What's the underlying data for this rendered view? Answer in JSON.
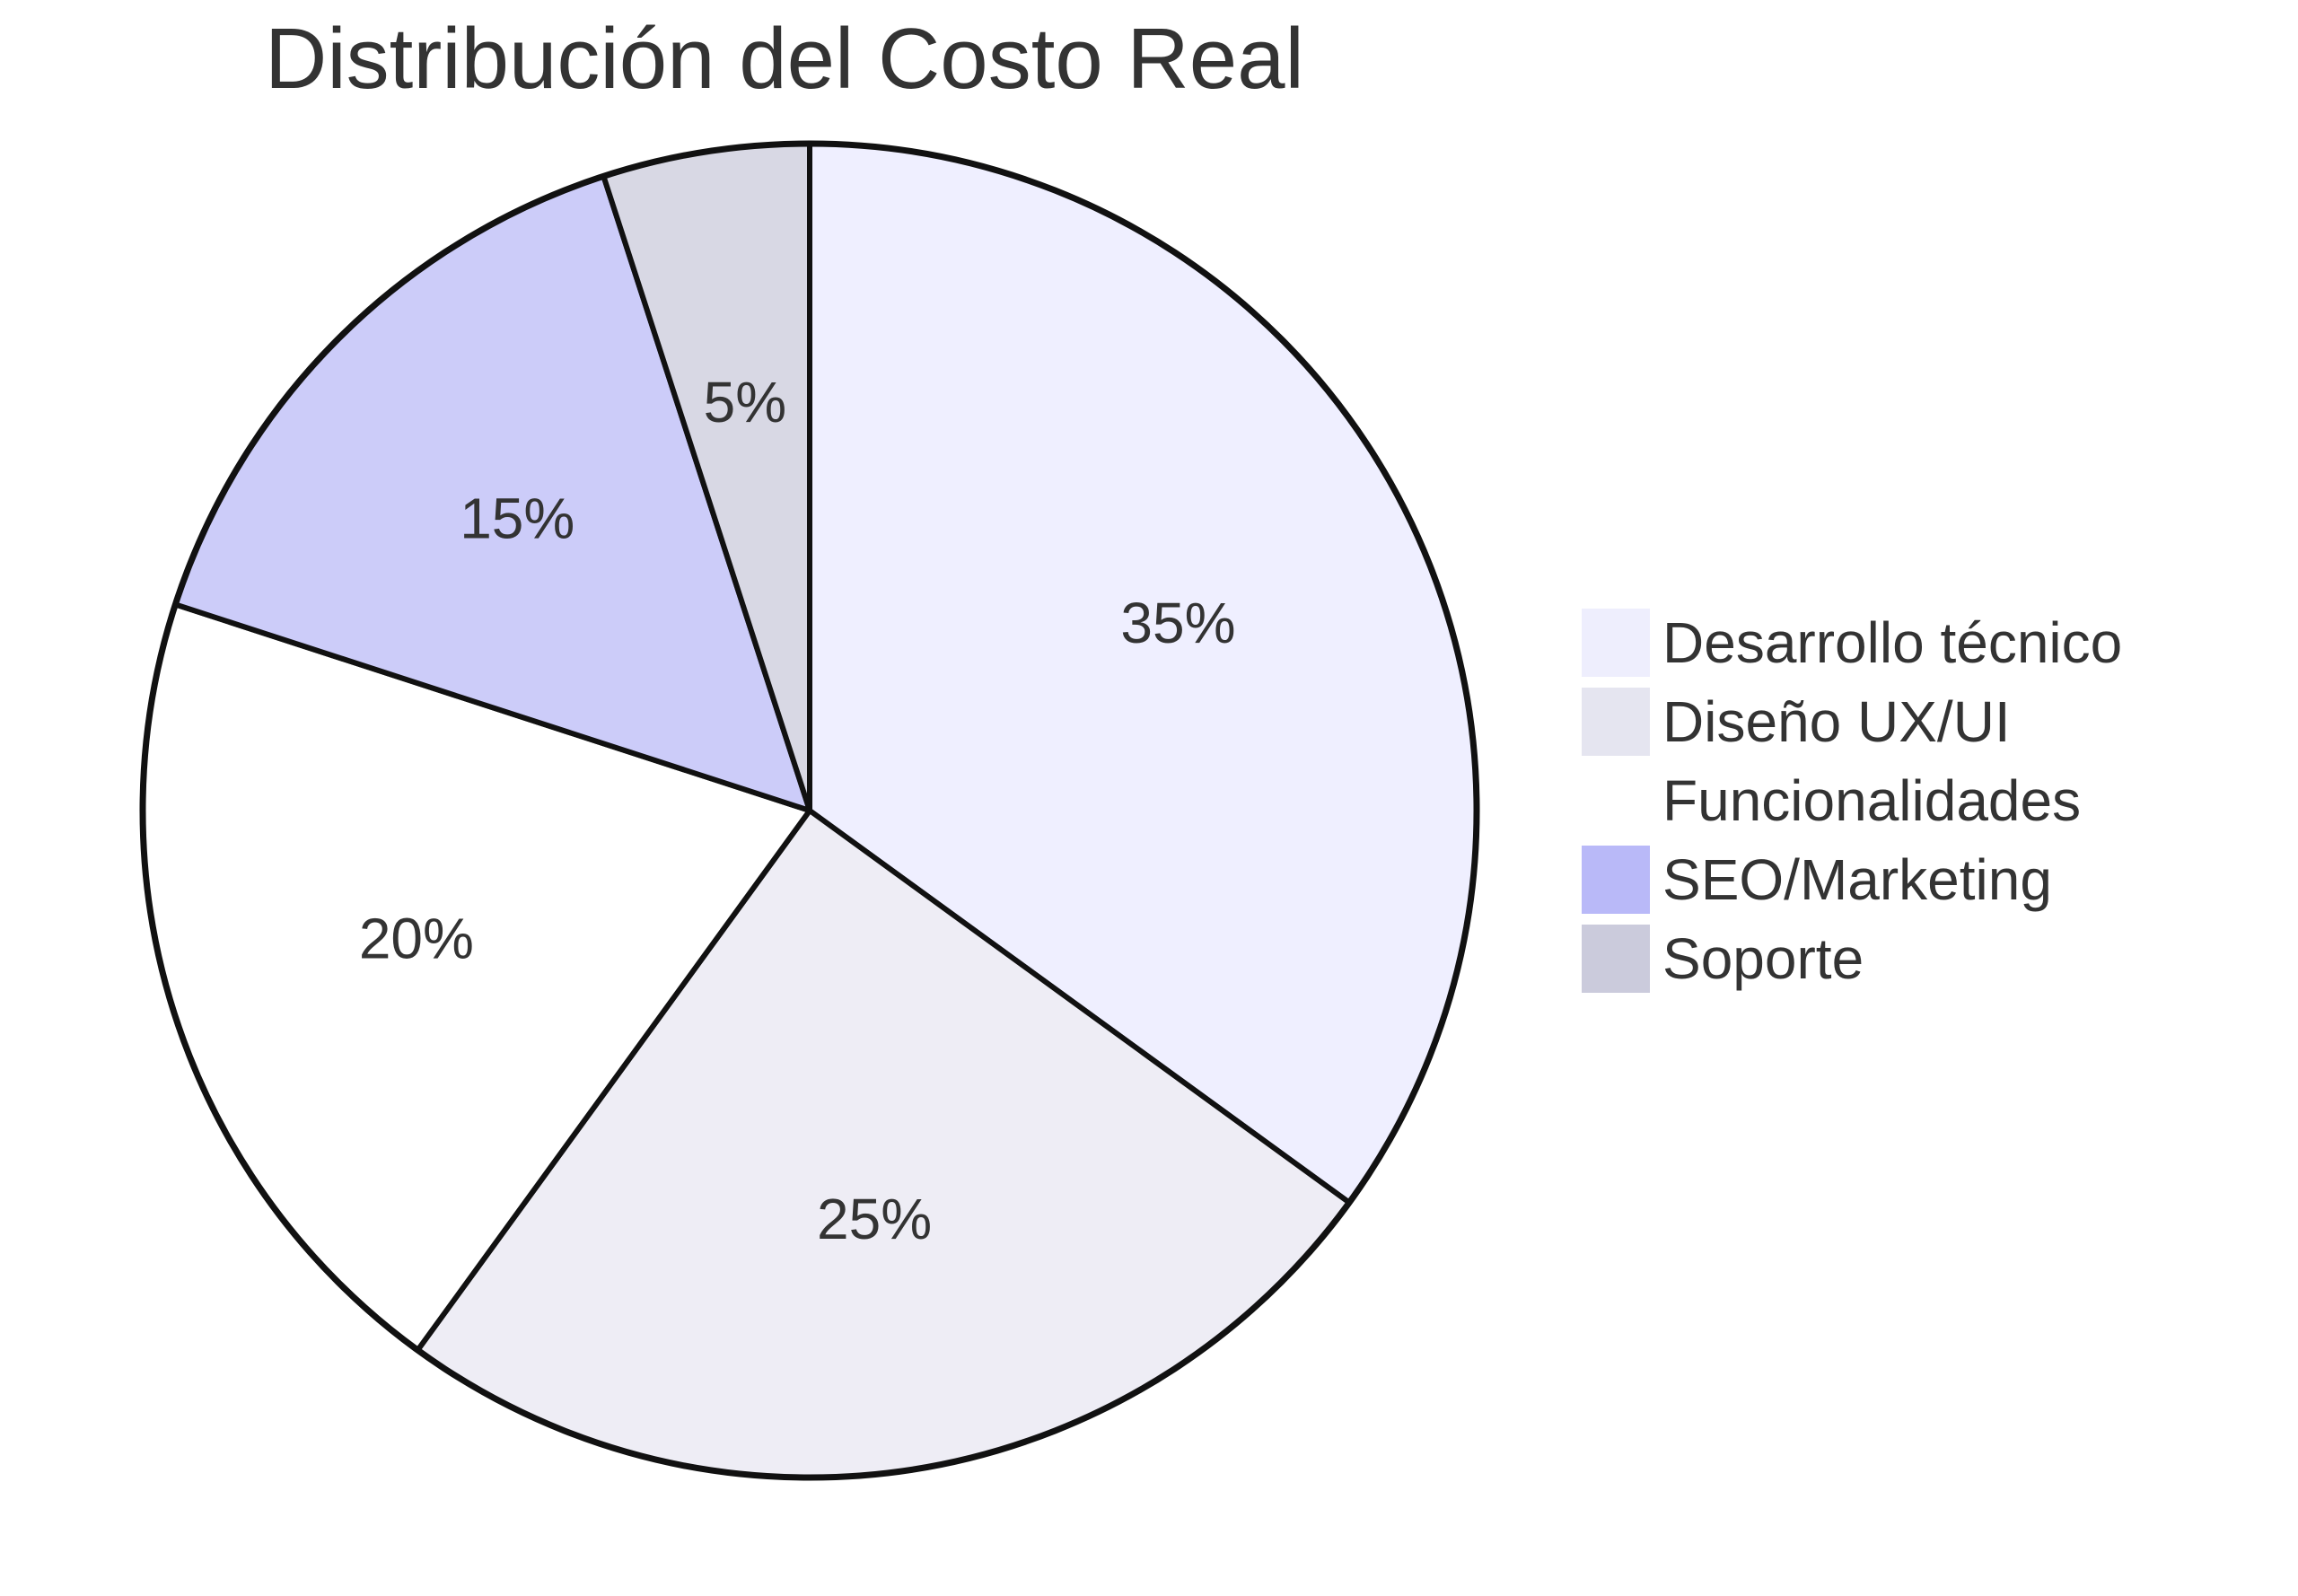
{
  "chart_data": {
    "type": "pie",
    "title": "Distribución del Costo Real",
    "slices": [
      {
        "label": "Desarrollo técnico",
        "value": 35,
        "display": "35%",
        "color": "#efefff"
      },
      {
        "label": "Diseño UX/UI",
        "value": 25,
        "display": "25%",
        "color": "#eeedf5"
      },
      {
        "label": "Funcionalidades",
        "value": 20,
        "display": "20%",
        "color": "#ffffff"
      },
      {
        "label": "SEO/Marketing",
        "value": 15,
        "display": "15%",
        "color": "#ccccf9"
      },
      {
        "label": "Soporte",
        "value": 5,
        "display": "5%",
        "color": "#d8d8e4"
      }
    ],
    "legend": {
      "position": "right",
      "entries": [
        {
          "label": "Desarrollo técnico",
          "color": "#eeeefd"
        },
        {
          "label": "Diseño UX/UI",
          "color": "#e5e5f0"
        },
        {
          "label": "Funcionalidades",
          "color": "#ffffff"
        },
        {
          "label": "SEO/Marketing",
          "color": "#b9b9f8"
        },
        {
          "label": "Soporte",
          "color": "#cbcbdc"
        }
      ]
    },
    "start_angle": "12 o'clock",
    "direction": "clockwise",
    "stroke_color": "#111111"
  }
}
